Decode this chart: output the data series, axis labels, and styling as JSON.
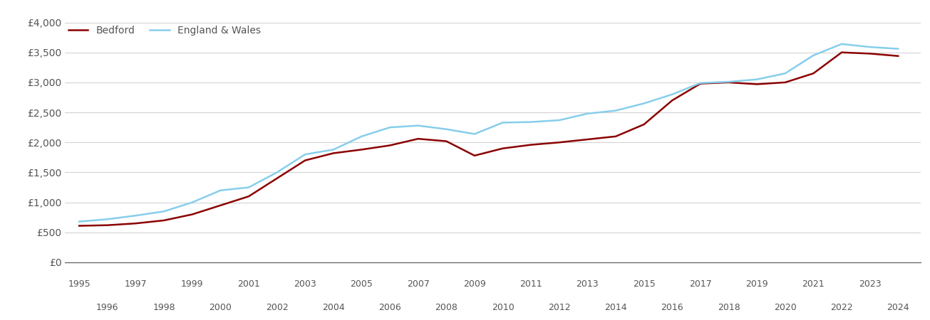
{
  "years": [
    1995,
    1996,
    1997,
    1998,
    1999,
    2000,
    2001,
    2002,
    2003,
    2004,
    2005,
    2006,
    2007,
    2008,
    2009,
    2010,
    2011,
    2012,
    2013,
    2014,
    2015,
    2016,
    2017,
    2018,
    2019,
    2020,
    2021,
    2022,
    2023,
    2024
  ],
  "bedford": [
    610,
    620,
    650,
    700,
    800,
    950,
    1100,
    1400,
    1700,
    1820,
    1880,
    1950,
    2060,
    2020,
    1780,
    1900,
    1960,
    2000,
    2050,
    2100,
    2300,
    2700,
    2980,
    3000,
    2970,
    3000,
    3150,
    3500,
    3480,
    3440
  ],
  "england_wales": [
    680,
    720,
    780,
    850,
    1000,
    1200,
    1250,
    1500,
    1800,
    1880,
    2100,
    2250,
    2280,
    2220,
    2140,
    2330,
    2340,
    2370,
    2480,
    2530,
    2650,
    2800,
    2990,
    3010,
    3050,
    3150,
    3450,
    3640,
    3590,
    3560
  ],
  "bedford_color": "#8B0000",
  "england_wales_color": "#87CEEB",
  "ylim": [
    0,
    4000
  ],
  "ytick_values": [
    0,
    500,
    1000,
    1500,
    2000,
    2500,
    3000,
    3500,
    4000
  ],
  "ytick_labels": [
    "£0",
    "£500",
    "£1,000",
    "£1,500",
    "£2,000",
    "£2,500",
    "£3,000",
    "£3,500",
    "£4,000"
  ],
  "xtick_odd": [
    1995,
    1997,
    1999,
    2001,
    2003,
    2005,
    2007,
    2009,
    2011,
    2013,
    2015,
    2017,
    2019,
    2021,
    2023
  ],
  "xtick_even": [
    1996,
    1998,
    2000,
    2002,
    2004,
    2006,
    2008,
    2010,
    2012,
    2014,
    2016,
    2018,
    2020,
    2022,
    2024
  ],
  "legend_bedford": "Bedford",
  "legend_ew": "England & Wales",
  "line_width": 1.8,
  "background_color": "#ffffff",
  "grid_color": "#d3d3d3",
  "xlim_left": 1994.5,
  "xlim_right": 2024.8
}
